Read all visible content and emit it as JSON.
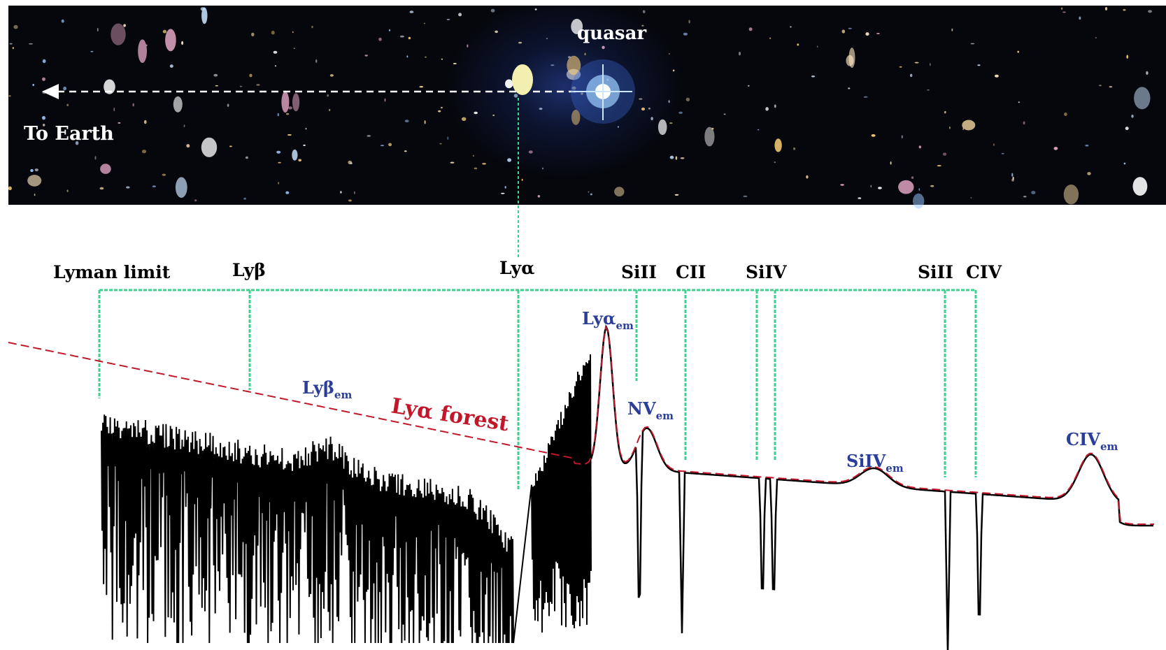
{
  "sky": {
    "quasar_label": "quasar",
    "earth_label": "To Earth"
  },
  "lines": {
    "lyman_limit": "Lyman limit",
    "ly_beta": "Lyβ",
    "ly_alpha": "Lyα",
    "si2_a": "SiII",
    "c2": "CII",
    "si4": "SiIV",
    "si2_b": "SiII",
    "c4": "CIV"
  },
  "emission": {
    "ly_alpha_em": "Lyα",
    "ly_beta_em": "Lyβ",
    "nv_em": "NV",
    "si4_em": "SiIV",
    "c4_em": "CIV",
    "subscript": "em"
  },
  "forest_label": "Lyα forest",
  "colors": {
    "line_marker": "#3fcf8e",
    "emission_label": "#2b3f9a",
    "forest_label": "#c0182a",
    "continuum": "#c0182a",
    "spectrum": "#000000"
  }
}
